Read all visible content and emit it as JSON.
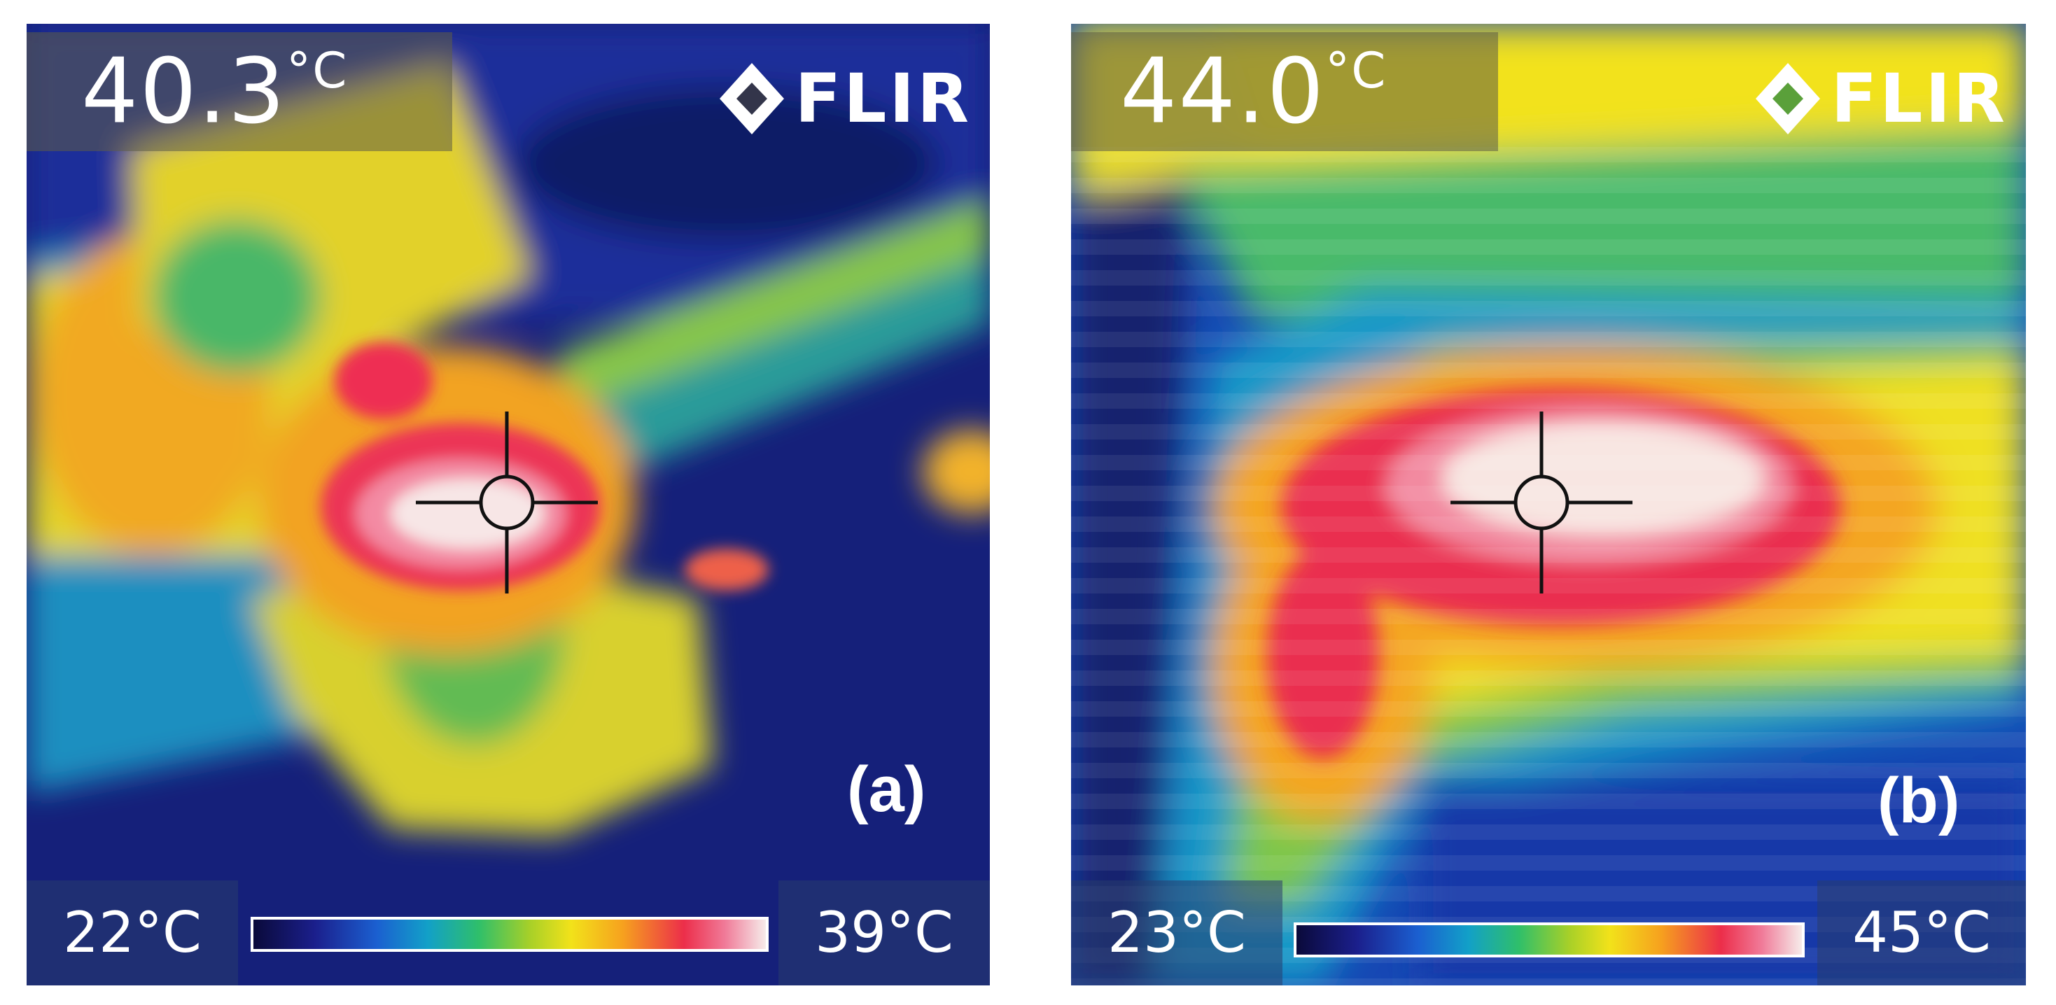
{
  "panels": [
    {
      "id": "a",
      "spot_temperature": "40.3",
      "spot_unit": "°C",
      "brand": "FLIR",
      "label": "(a)",
      "scale_min": "22°C",
      "scale_max": "39°C"
    },
    {
      "id": "b",
      "spot_temperature": "44.0",
      "spot_unit": "°C",
      "brand": "FLIR",
      "label": "(b)",
      "scale_min": "23°C",
      "scale_max": "45°C"
    }
  ],
  "colors": {
    "palette": [
      "#0a0a3a",
      "#1b1f8c",
      "#1b5fd0",
      "#12a0c8",
      "#2fbf6a",
      "#a8d028",
      "#f2e21a",
      "#f6a21e",
      "#ec2e4a",
      "#f07a98",
      "#f6ecea"
    ],
    "text": "#ffffff",
    "crosshair": "#111111"
  },
  "icons": [
    "flir-diamond-logo-icon",
    "crosshair-icon"
  ]
}
